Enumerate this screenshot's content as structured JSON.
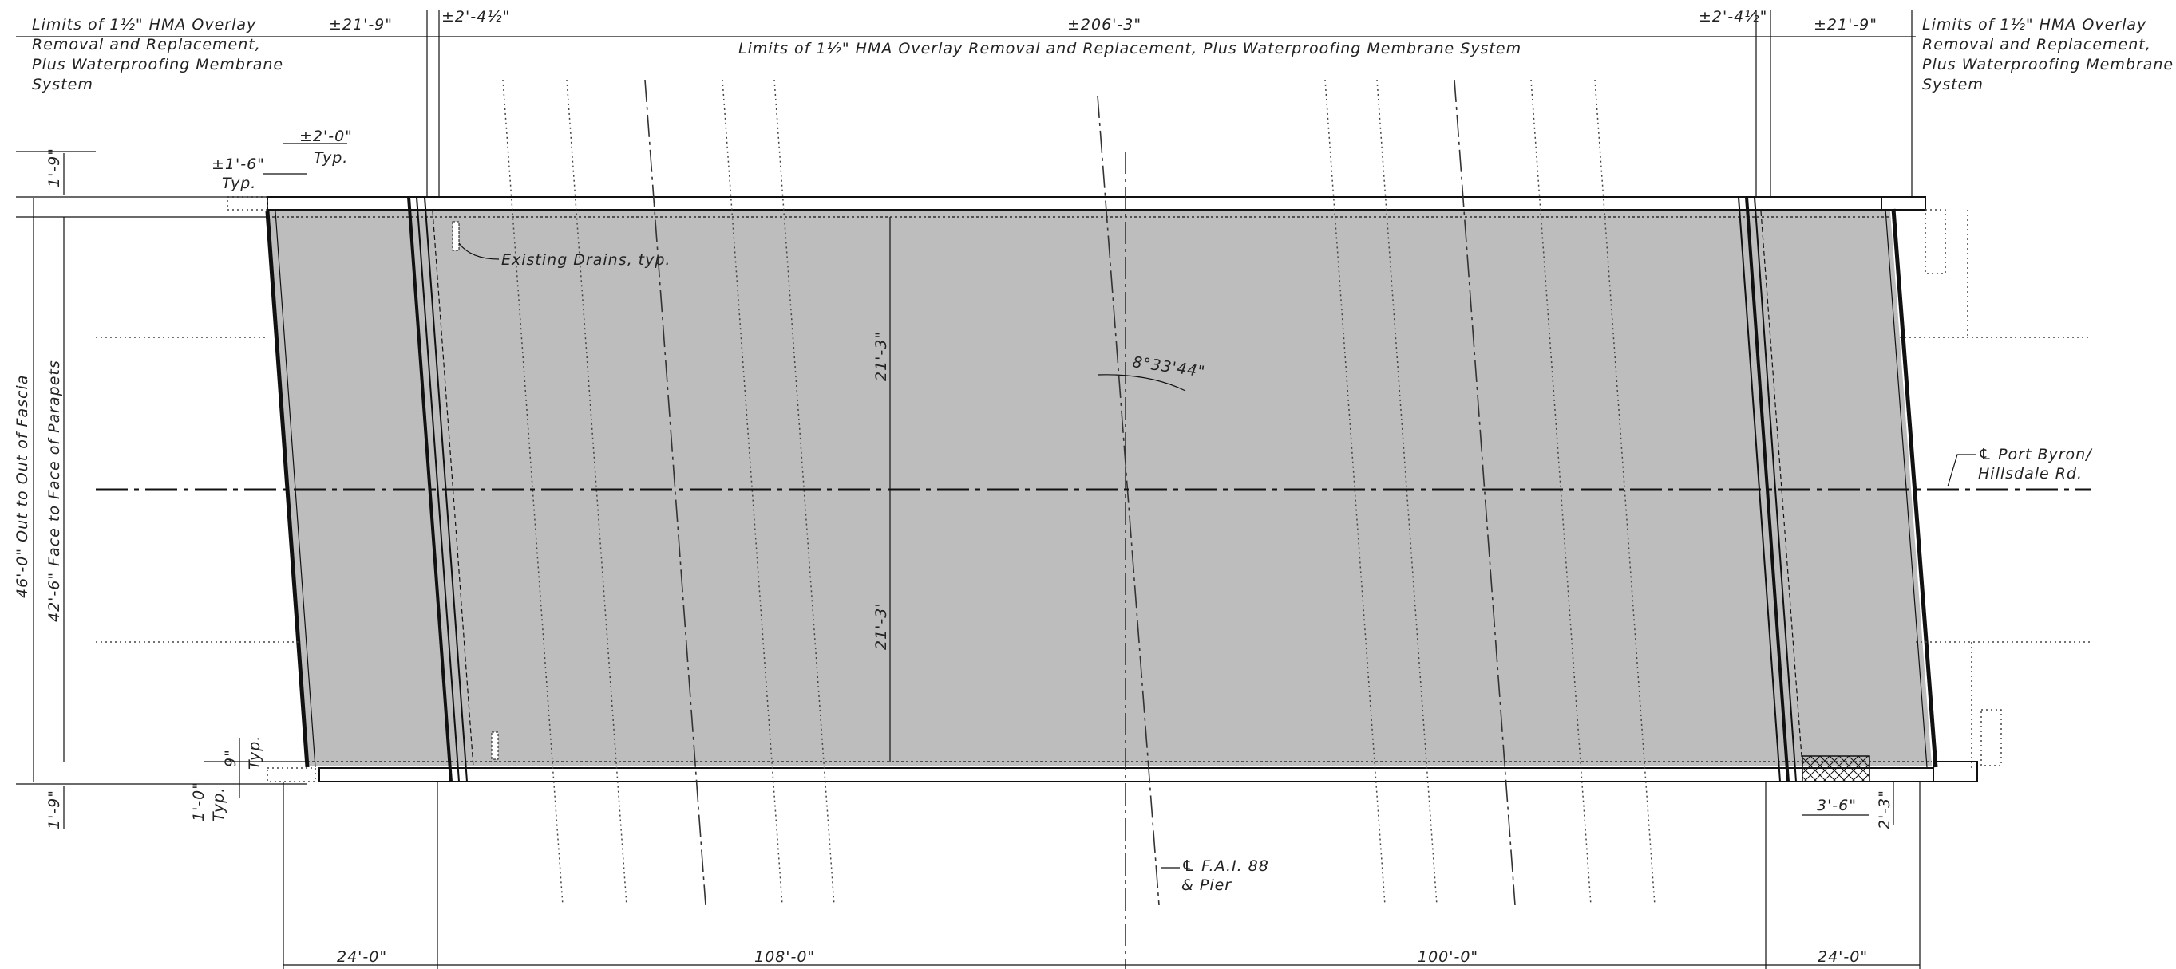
{
  "labels": {
    "limits_left": [
      "Limits of 1½\" HMA Overlay",
      "Removal and Replacement,",
      "Plus Waterproofing Membrane",
      "System"
    ],
    "limits_right": [
      "Limits of 1½\" HMA Overlay",
      "Removal and Replacement,",
      "Plus Waterproofing Membrane",
      "System"
    ],
    "limits_center": "Limits of 1½\" HMA Overlay Removal and Replacement, Plus Waterproofing Membrane System",
    "top_dim_left": "±21'-9\"",
    "top_dim_left_small": "±2'-4½\"",
    "top_dim_center": "±206'-3\"",
    "top_dim_right_small": "±2'-4½\"",
    "top_dim_right": "±21'-9\"",
    "dim_1_6": "±1'-6\"",
    "typ_a": "Typ.",
    "dim_2_0": "±2'-0\"",
    "typ_b": "Typ.",
    "dim_1_9_top": "1'-9\"",
    "dim_1_9_bottom": "1'-9\"",
    "fascia": "46'-0\" Out to Out of Fascia",
    "parapets": "42'-6\" Face to Face of Parapets",
    "drains": "Existing Drains, typ.",
    "half_upper": "21'-3\"",
    "half_lower": "21'-3'",
    "skew": "8°33'44\"",
    "cl_road": [
      "℄ Port Byron/",
      "Hillsdale Rd."
    ],
    "cl_pier": [
      "℄ F.A.I. 88",
      "& Pier"
    ],
    "dim_9": "9\"",
    "typ_c": "Typ.",
    "dim_1_0": "1'-0\"",
    "typ_d": "Typ.",
    "dim_3_6": "3'-6\"",
    "dim_2_3": "2'-3\"",
    "bottom_24_left": "24'-0\"",
    "bottom_108": "108'-0\"",
    "bottom_100": "100'-0\"",
    "bottom_24_right": "24'-0\""
  },
  "colors": {
    "deck_fill": "#bdbdbd",
    "line": "#111111"
  }
}
